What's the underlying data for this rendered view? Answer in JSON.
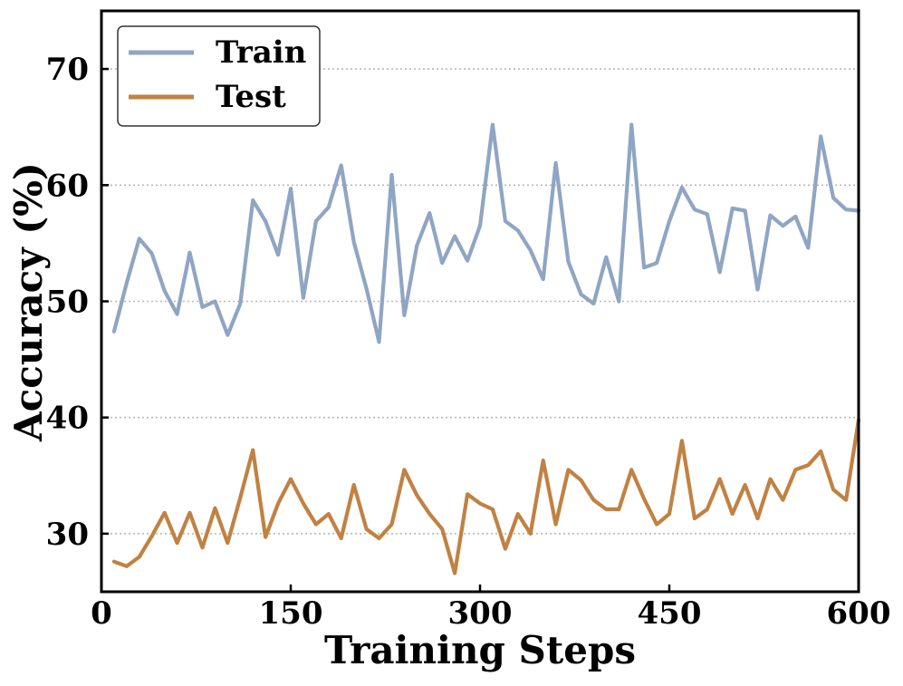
{
  "chart_data": {
    "type": "line",
    "xlabel": "Training Steps",
    "ylabel": "Accuracy (%)",
    "xlim": [
      0,
      600
    ],
    "ylim": [
      25,
      75
    ],
    "xticks": [
      0,
      150,
      300,
      450,
      600
    ],
    "xtick_labels": [
      "0",
      "150",
      "300",
      "450",
      "600"
    ],
    "yticks": [
      30,
      40,
      50,
      60,
      70
    ],
    "ytick_labels": [
      "30",
      "40",
      "50",
      "60",
      "70"
    ],
    "grid": "horizontal dotted",
    "legend_position": "top-left",
    "x": [
      10,
      20,
      30,
      40,
      50,
      60,
      70,
      80,
      90,
      100,
      110,
      120,
      130,
      140,
      150,
      160,
      170,
      180,
      190,
      200,
      210,
      220,
      230,
      240,
      250,
      260,
      270,
      280,
      290,
      300,
      310,
      320,
      330,
      340,
      350,
      360,
      370,
      380,
      390,
      400,
      410,
      420,
      430,
      440,
      450,
      460,
      470,
      480,
      490,
      500,
      510,
      520,
      530,
      540,
      550,
      560,
      570,
      580,
      590,
      600
    ],
    "series": [
      {
        "name": "Train",
        "color": "#8fa5c3",
        "values": [
          47.4,
          51.6,
          55.4,
          54.1,
          50.9,
          48.9,
          54.2,
          49.5,
          50.0,
          47.1,
          49.8,
          58.7,
          56.9,
          54.0,
          59.7,
          50.3,
          56.9,
          58.1,
          61.7,
          55.1,
          51.1,
          46.5,
          60.9,
          48.8,
          54.8,
          57.6,
          53.3,
          55.6,
          53.5,
          56.5,
          65.2,
          56.9,
          56.1,
          54.4,
          51.9,
          61.9,
          53.4,
          50.6,
          49.8,
          53.8,
          50.0,
          65.2,
          52.9,
          53.3,
          56.9,
          59.8,
          57.9,
          57.5,
          52.5,
          58.0,
          57.8,
          51.0,
          57.4,
          56.5,
          57.3,
          54.6,
          64.2,
          58.9,
          57.9,
          57.8
        ]
      },
      {
        "name": "Test",
        "color": "#c08243",
        "values": [
          27.6,
          27.2,
          28.0,
          29.8,
          31.8,
          29.2,
          31.8,
          28.8,
          32.2,
          29.2,
          33.1,
          37.2,
          29.7,
          32.6,
          34.7,
          32.6,
          30.8,
          31.7,
          29.6,
          34.2,
          30.4,
          29.6,
          30.8,
          35.5,
          33.3,
          31.7,
          30.4,
          26.6,
          33.4,
          32.6,
          32.1,
          28.7,
          31.7,
          30.0,
          36.3,
          30.8,
          35.5,
          34.6,
          32.9,
          32.1,
          32.1,
          35.5,
          33.0,
          30.8,
          31.7,
          38.0,
          31.3,
          32.1,
          34.7,
          31.7,
          34.2,
          31.3,
          34.7,
          32.9,
          35.5,
          35.9,
          37.1,
          33.8,
          32.9,
          39.8
        ]
      }
    ]
  }
}
